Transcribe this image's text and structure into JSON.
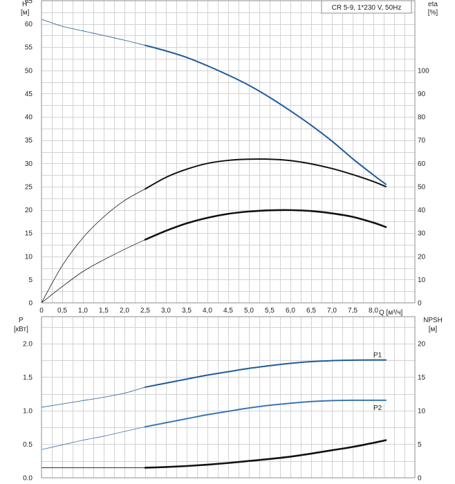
{
  "chart_data": [
    {
      "type": "line",
      "legend_text": "CR 5-9, 1*230 V, 50Hz",
      "xlabel": "Q [м³/ч]",
      "ylabel_left": "H\n[м]",
      "ylabel_right": "eta\n[%]",
      "xlim": [
        0,
        9.0
      ],
      "ylim_left": [
        0,
        65
      ],
      "ylim_right": [
        0,
        130
      ],
      "x_ticks": [
        "0",
        "0,5",
        "1,0",
        "1,5",
        "2,0",
        "2,5",
        "3,0",
        "3,5",
        "4,0",
        "4,5",
        "5,0",
        "5,5",
        "6,0",
        "6,5",
        "7,0",
        "7,5",
        "8,0"
      ],
      "y_ticks_left": [
        "0",
        "5",
        "10",
        "15",
        "20",
        "25",
        "30",
        "35",
        "40",
        "45",
        "50",
        "55",
        "60",
        "65"
      ],
      "y_ticks_right": [
        "0",
        "10",
        "20",
        "30",
        "40",
        "50",
        "60",
        "70",
        "80",
        "90",
        "100"
      ],
      "grid": true,
      "duty_range": [
        2.5,
        8.3
      ],
      "series": [
        {
          "axis": "left",
          "color": "#1f5b99",
          "x": [
            0,
            0.5,
            1.0,
            1.5,
            2.0,
            2.5,
            3.0,
            3.5,
            4.0,
            4.5,
            5.0,
            5.5,
            6.0,
            6.5,
            7.0,
            7.5,
            8.0,
            8.3
          ],
          "y": [
            61,
            59.5,
            58.5,
            57.5,
            56.5,
            55.4,
            54.2,
            52.8,
            51,
            49,
            46.8,
            44.2,
            41.3,
            38.2,
            34.8,
            31,
            27.5,
            25.5
          ]
        },
        {
          "axis": "right",
          "color": "#111111",
          "x": [
            0,
            0.5,
            1.0,
            1.5,
            2.0,
            2.5,
            3.0,
            3.5,
            4.0,
            4.5,
            5.0,
            5.5,
            6.0,
            6.5,
            7.0,
            7.5,
            8.0,
            8.3
          ],
          "y": [
            0,
            16,
            28,
            37,
            44,
            49,
            54,
            57.5,
            60,
            61.3,
            61.8,
            61.8,
            61.2,
            59.8,
            57.8,
            55.2,
            52.2,
            50
          ]
        },
        {
          "axis": "right",
          "color": "#111111",
          "bold": true,
          "x": [
            0,
            0.5,
            1.0,
            1.5,
            2.0,
            2.5,
            3.0,
            3.5,
            4.0,
            4.5,
            5.0,
            5.5,
            6.0,
            6.5,
            7.0,
            7.5,
            8.0,
            8.3
          ],
          "y": [
            0,
            7,
            13.5,
            18.5,
            23,
            27.2,
            31,
            34.2,
            36.6,
            38.3,
            39.3,
            39.8,
            39.9,
            39.5,
            38.5,
            37,
            34.5,
            32.6
          ]
        }
      ]
    },
    {
      "type": "line",
      "ylabel_left": "P\n[кВт]",
      "ylabel_right": "NPSH\n[м]",
      "xlim": [
        0,
        9.0
      ],
      "ylim_left": [
        0,
        2.4
      ],
      "ylim_right": [
        0,
        24
      ],
      "y_ticks_left": [
        "0.0",
        "0.5",
        "1.0",
        "1.5",
        "2.0"
      ],
      "y_ticks_right": [
        "0",
        "5",
        "10",
        "15",
        "20"
      ],
      "grid": true,
      "duty_range": [
        2.5,
        8.3
      ],
      "series": [
        {
          "name": "P1",
          "axis": "left",
          "color": "#1f5b99",
          "x": [
            0,
            0.5,
            1.0,
            1.5,
            2.0,
            2.5,
            3.0,
            3.5,
            4.0,
            4.5,
            5.0,
            5.5,
            6.0,
            6.5,
            7.0,
            7.5,
            8.0,
            8.3
          ],
          "y": [
            1.05,
            1.1,
            1.15,
            1.2,
            1.26,
            1.35,
            1.41,
            1.47,
            1.53,
            1.58,
            1.63,
            1.67,
            1.705,
            1.73,
            1.745,
            1.752,
            1.755,
            1.755
          ]
        },
        {
          "name": "P2",
          "axis": "left",
          "color": "#3a74b5",
          "x": [
            0,
            0.5,
            1.0,
            1.5,
            2.0,
            2.5,
            3.0,
            3.5,
            4.0,
            4.5,
            5.0,
            5.5,
            6.0,
            6.5,
            7.0,
            7.5,
            8.0,
            8.3
          ],
          "y": [
            0.42,
            0.49,
            0.56,
            0.62,
            0.69,
            0.76,
            0.82,
            0.88,
            0.94,
            0.99,
            1.04,
            1.08,
            1.11,
            1.135,
            1.15,
            1.155,
            1.155,
            1.155
          ]
        },
        {
          "axis": "right",
          "color": "#111111",
          "bold": true,
          "x": [
            0,
            0.5,
            1.0,
            1.5,
            2.0,
            2.5,
            3.0,
            3.5,
            4.0,
            4.5,
            5.0,
            5.5,
            6.0,
            6.5,
            7.0,
            7.5,
            8.0,
            8.3
          ],
          "y": [
            1.5,
            1.5,
            1.5,
            1.5,
            1.5,
            1.5,
            1.6,
            1.75,
            1.95,
            2.2,
            2.5,
            2.8,
            3.15,
            3.6,
            4.1,
            4.6,
            5.2,
            5.6
          ]
        }
      ]
    }
  ]
}
